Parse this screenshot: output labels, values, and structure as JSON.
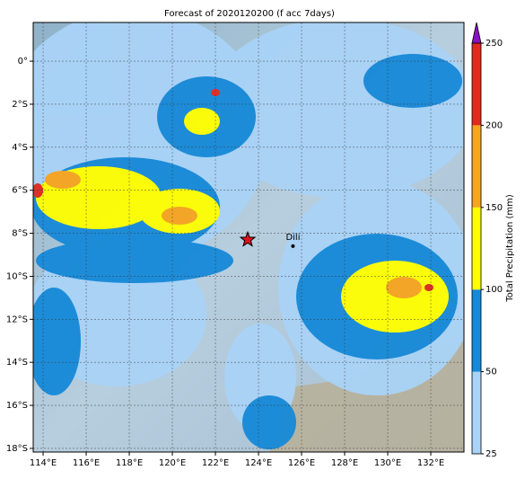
{
  "chart_data": {
    "type": "map",
    "title": "Forecast of 2020120200 (f acc 7days)",
    "xlim": [
      113.54,
      133.54
    ],
    "ylim": [
      -18.17,
      1.8
    ],
    "xticks": [
      {
        "value": 114,
        "label": "114°E"
      },
      {
        "value": 116,
        "label": "116°E"
      },
      {
        "value": 118,
        "label": "118°E"
      },
      {
        "value": 120,
        "label": "120°E"
      },
      {
        "value": 122,
        "label": "122°E"
      },
      {
        "value": 124,
        "label": "124°E"
      },
      {
        "value": 126,
        "label": "126°E"
      },
      {
        "value": 128,
        "label": "128°E"
      },
      {
        "value": 130,
        "label": "130°E"
      },
      {
        "value": 132,
        "label": "132°E"
      }
    ],
    "yticks": [
      {
        "value": 0,
        "label": "0°"
      },
      {
        "value": -2,
        "label": "2°S"
      },
      {
        "value": -4,
        "label": "4°S"
      },
      {
        "value": -6,
        "label": "6°S"
      },
      {
        "value": -8,
        "label": "8°S"
      },
      {
        "value": -10,
        "label": "10°S"
      },
      {
        "value": -12,
        "label": "12°S"
      },
      {
        "value": -14,
        "label": "14°S"
      },
      {
        "value": -16,
        "label": "16°S"
      },
      {
        "value": -18,
        "label": "18°S"
      }
    ],
    "grid": true,
    "colorbar": {
      "label": "Total Precipitation (mm)",
      "ticks": [
        25,
        50,
        100,
        150,
        200,
        250
      ],
      "colors": [
        "#a9d3f7",
        "#1689d8",
        "#ffff00",
        "#f7a41e",
        "#e02a1e"
      ],
      "extend_color": "#8a12c4"
    },
    "markers": [
      {
        "lon": 123.5,
        "lat": -8.3,
        "color": "#e0101e"
      }
    ],
    "places": [
      {
        "name": "Dili",
        "lon": 125.6,
        "lat": -8.6
      }
    ]
  }
}
